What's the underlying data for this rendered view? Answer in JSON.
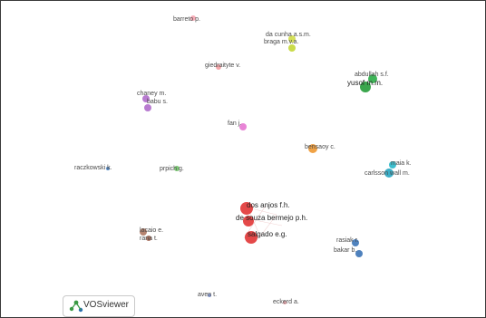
{
  "nodes": [
    {
      "label": "barreto p.",
      "color": "#f7a6b2"
    },
    {
      "label": "da cunha a.s.m.",
      "color": "#d0dc4c"
    },
    {
      "label": "braga m.v.a.",
      "color": "#c5d83b"
    },
    {
      "label": "giedraityte v.",
      "color": "#f3a0a3"
    },
    {
      "label": "abdullah s.f.",
      "color": "#2fae4a"
    },
    {
      "label": "yusof m.m.",
      "color": "#2a9e3e"
    },
    {
      "label": "chaney m.",
      "color": "#b270cc"
    },
    {
      "label": "babu s.",
      "color": "#b270cc"
    },
    {
      "label": "fan j.",
      "color": "#e67ad3"
    },
    {
      "label": "bensaoy c.",
      "color": "#ef9a36"
    },
    {
      "label": "maia k.",
      "color": "#2db9c9"
    },
    {
      "label": "carlsson wall m.",
      "color": "#2aa7c2"
    },
    {
      "label": "raczkowski k.",
      "color": "#4a83c4"
    },
    {
      "label": "prpich g.",
      "color": "#72c46a"
    },
    {
      "label": "dos anjos f.h.",
      "color": "#e23a3a"
    },
    {
      "label": "de souza bermejo p.h.",
      "color": "#e23a3a"
    },
    {
      "label": "salgado e.g.",
      "color": "#e23a3a"
    },
    {
      "label": "lacaio e.",
      "color": "#b07a64"
    },
    {
      "label": "rana t.",
      "color": "#a66b58"
    },
    {
      "label": "rasiak r.",
      "color": "#4178b8"
    },
    {
      "label": "bakar b.",
      "color": "#3f76b7"
    },
    {
      "label": "aven t.",
      "color": "#7b8fc9"
    },
    {
      "label": "eckerd a.",
      "color": "#e7a2a8"
    }
  ],
  "logo": {
    "name": "VOSviewer"
  }
}
